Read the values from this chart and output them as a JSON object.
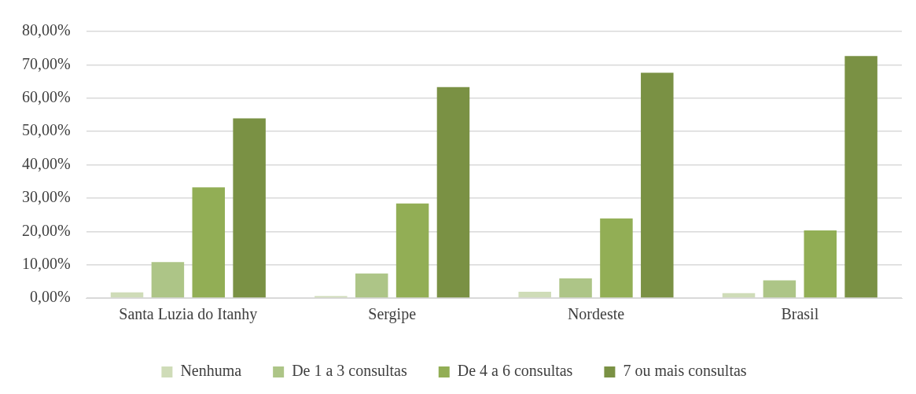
{
  "chart_data": {
    "type": "bar",
    "categories": [
      "Santa Luzia do Itanhy",
      "Sergipe",
      "Nordeste",
      "Brasil"
    ],
    "series": [
      {
        "name": "Nenhuma",
        "color": "#cfdcb8",
        "values": [
          1.7,
          0.6,
          1.9,
          1.5
        ]
      },
      {
        "name": "De 1 a 3 consultas",
        "color": "#adc587",
        "values": [
          10.8,
          7.4,
          5.9,
          5.3
        ]
      },
      {
        "name": "De 4 a 6 consultas",
        "color": "#92ae55",
        "values": [
          33.2,
          28.4,
          23.9,
          20.3
        ]
      },
      {
        "name": "7 ou mais consultas",
        "color": "#7a9144",
        "values": [
          53.9,
          63.3,
          67.6,
          72.6
        ]
      }
    ],
    "ylim": [
      0,
      80
    ],
    "yticks": [
      {
        "value": 0,
        "label": "0,00%"
      },
      {
        "value": 10,
        "label": "10,00%"
      },
      {
        "value": 20,
        "label": "20,00%"
      },
      {
        "value": 30,
        "label": "30,00%"
      },
      {
        "value": 40,
        "label": "40,00%"
      },
      {
        "value": 50,
        "label": "50,00%"
      },
      {
        "value": 60,
        "label": "60,00%"
      },
      {
        "value": 70,
        "label": "70,00%"
      },
      {
        "value": 80,
        "label": "80,00%"
      }
    ],
    "grid": "y",
    "legend": "bottom"
  }
}
